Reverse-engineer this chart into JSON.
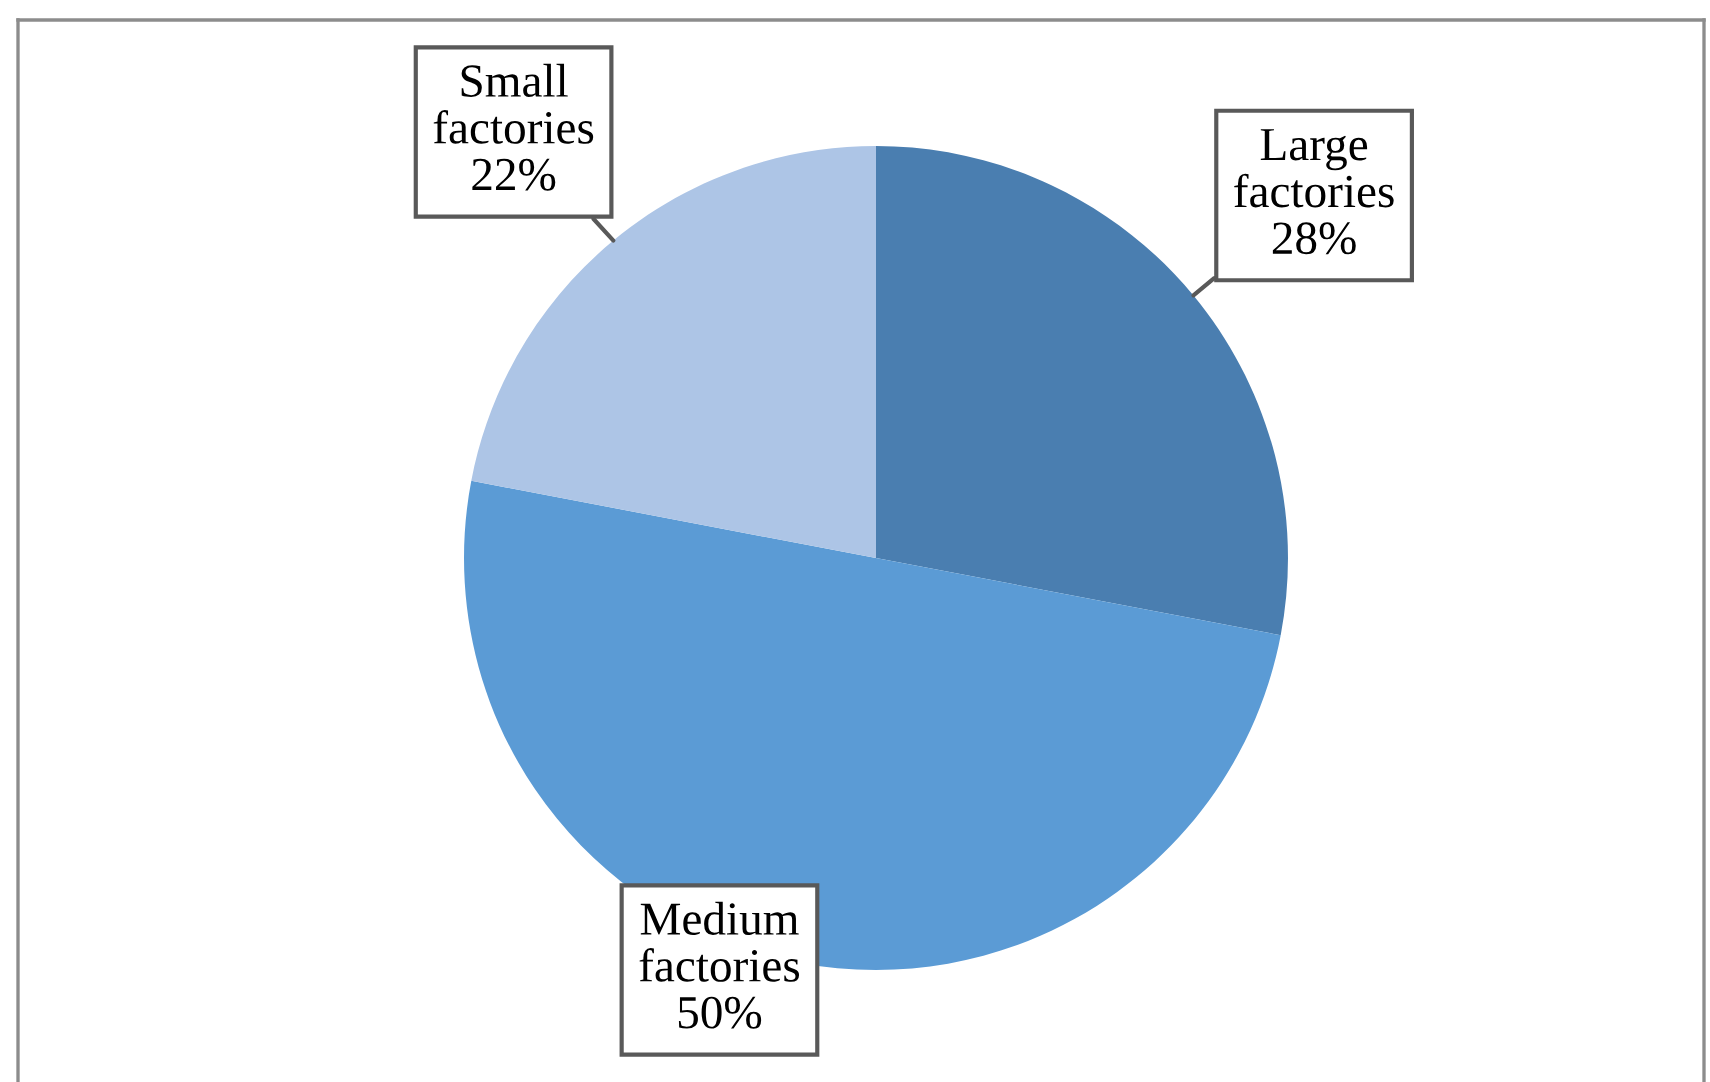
{
  "chart_data": {
    "type": "pie",
    "categories": [
      "Large factories",
      "Medium factories",
      "Small factories"
    ],
    "values": [
      28,
      50,
      22
    ],
    "colors": [
      "#4a7eb0",
      "#5b9bd5",
      "#adc5e6"
    ],
    "value_labels": [
      "28%",
      "50%",
      "22%"
    ]
  }
}
